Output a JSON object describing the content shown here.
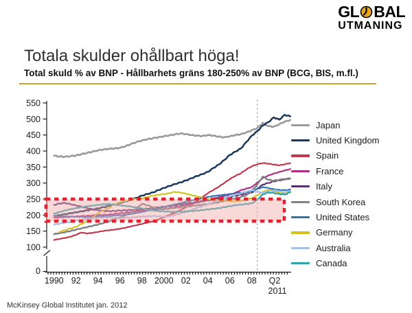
{
  "logo": {
    "part1": "GL",
    "part2": "BAL",
    "line2": "UTMANING",
    "clock_color": "#eaa61f"
  },
  "header": {
    "title": "Totala skulder ohållbart höga!",
    "subtitle": "Total skuld % av BNP - Hållbarhets gräns 180-250% av BNP (BCG, BIS, m.fl.)",
    "rule_color": "#d49e2a"
  },
  "footer": {
    "source": "McKinsey Global Institutet jan. 2012"
  },
  "chart_data": {
    "type": "line",
    "ylabel": "Total skuld % av BNP",
    "x_start": 1990,
    "x_step": 0.5,
    "x_end": 2011.5,
    "ylim": [
      100,
      550
    ],
    "y_axis_break_between": [
      0,
      100
    ],
    "y_ticks": [
      550,
      500,
      450,
      400,
      350,
      300,
      250,
      200,
      150,
      100
    ],
    "y_tick_zero": "0",
    "x_tick_labels": [
      {
        "t": 1990,
        "label": "1990"
      },
      {
        "t": 1992,
        "label": "92"
      },
      {
        "t": 1994,
        "label": "94"
      },
      {
        "t": 1996,
        "label": "96"
      },
      {
        "t": 1998,
        "label": "98"
      },
      {
        "t": 2000,
        "label": "2000"
      },
      {
        "t": 2002,
        "label": "02"
      },
      {
        "t": 2004,
        "label": "04"
      },
      {
        "t": 2006,
        "label": "06"
      },
      {
        "t": 2008,
        "label": "08"
      },
      {
        "t": 2011.25,
        "label": "Q2",
        "sublabel": "2011"
      }
    ],
    "band": {
      "from": 181,
      "to": 250,
      "note": "Hållbarhets gräns 180-250% av BNP",
      "fill": "#f2a9a9",
      "border": "#e32330"
    },
    "event_line_x": 2008.5,
    "legend_position": "right",
    "series": [
      {
        "name": "Japan",
        "color": "#9b9b9b",
        "width": 2.7,
        "values": [
          385,
          383,
          382,
          384,
          386,
          390,
          394,
          398,
          402,
          405,
          407,
          408,
          410,
          415,
          422,
          428,
          433,
          437,
          440,
          443,
          446,
          449,
          452,
          455,
          453,
          450,
          448,
          447,
          450,
          448,
          445,
          443,
          446,
          450,
          453,
          458,
          465,
          472,
          488,
          478,
          476,
          484,
          492,
          497
        ]
      },
      {
        "name": "United Kingdom",
        "color": "#17365d",
        "width": 2.5,
        "values": [
          198,
          200,
          203,
          206,
          209,
          212,
          215,
          218,
          221,
          225,
          229,
          233,
          238,
          243,
          248,
          254,
          261,
          266,
          271,
          278,
          285,
          291,
          297,
          302,
          308,
          315,
          322,
          328,
          335,
          347,
          358,
          372,
          388,
          398,
          408,
          428,
          448,
          462,
          480,
          490,
          505,
          498,
          513,
          508
        ]
      },
      {
        "name": "Spain",
        "color": "#c0394e",
        "width": 2.2,
        "values": [
          122,
          125,
          128,
          132,
          138,
          145,
          142,
          144,
          147,
          150,
          152,
          154,
          157,
          160,
          164,
          168,
          172,
          176,
          180,
          186,
          193,
          200,
          207,
          215,
          224,
          232,
          242,
          255,
          268,
          278,
          288,
          300,
          312,
          322,
          330,
          342,
          352,
          358,
          362,
          360,
          357,
          355,
          358,
          362
        ]
      },
      {
        "name": "France",
        "color": "#b02d82",
        "width": 2.2,
        "values": [
          192,
          193,
          194,
          195,
          196,
          197,
          198,
          199,
          200,
          201,
          202,
          204,
          206,
          208,
          210,
          212,
          214,
          215,
          216,
          218,
          220,
          222,
          225,
          228,
          232,
          236,
          240,
          244,
          248,
          252,
          256,
          260,
          265,
          270,
          278,
          283,
          288,
          302,
          316,
          324,
          330,
          335,
          340,
          344
        ]
      },
      {
        "name": "Italy",
        "color": "#5c2d71",
        "width": 2.2,
        "values": [
          232,
          236,
          238,
          234,
          230,
          226,
          222,
          218,
          215,
          213,
          212,
          213,
          214,
          215,
          216,
          217,
          218,
          220,
          222,
          224,
          226,
          228,
          230,
          233,
          236,
          238,
          240,
          243,
          246,
          248,
          250,
          253,
          256,
          260,
          264,
          266,
          270,
          282,
          295,
          300,
          305,
          308,
          312,
          314
        ]
      },
      {
        "name": "South Korea",
        "color": "#828282",
        "width": 2.5,
        "values": [
          140,
          143,
          146,
          150,
          154,
          158,
          162,
          166,
          170,
          175,
          180,
          186,
          192,
          199,
          207,
          220,
          235,
          230,
          224,
          220,
          218,
          220,
          222,
          224,
          226,
          228,
          230,
          232,
          234,
          237,
          240,
          244,
          248,
          252,
          256,
          262,
          275,
          295,
          320,
          310,
          307,
          310,
          311,
          314
        ]
      },
      {
        "name": "United States",
        "color": "#2e74b5",
        "width": 2.2,
        "values": [
          198,
          197,
          196,
          196,
          195,
          195,
          194,
          195,
          196,
          197,
          198,
          199,
          200,
          202,
          204,
          207,
          210,
          214,
          218,
          222,
          226,
          230,
          234,
          238,
          242,
          246,
          250,
          254,
          257,
          260,
          262,
          264,
          266,
          268,
          270,
          272,
          275,
          282,
          288,
          285,
          281,
          279,
          278,
          280
        ]
      },
      {
        "name": "Germany",
        "color": "#d3c120",
        "width": 2.2,
        "values": [
          null,
          148,
          152,
          158,
          163,
          172,
          180,
          192,
          205,
          215,
          222,
          232,
          240,
          244,
          248,
          250,
          252,
          256,
          260,
          263,
          265,
          268,
          272,
          270,
          266,
          262,
          258,
          254,
          250,
          248,
          246,
          244,
          243,
          242,
          244,
          248,
          252,
          262,
          272,
          278,
          274,
          269,
          267,
          270
        ]
      },
      {
        "name": "Australia",
        "color": "#a7bfe6",
        "width": 2.2,
        "values": [
          170,
          173,
          176,
          179,
          182,
          185,
          188,
          190,
          191,
          192,
          192,
          191,
          190,
          191,
          192,
          194,
          195,
          196,
          197,
          196,
          195,
          197,
          200,
          205,
          210,
          216,
          222,
          228,
          234,
          240,
          246,
          252,
          258,
          263,
          268,
          273,
          278,
          272,
          270,
          274,
          277,
          274,
          272,
          276
        ]
      },
      {
        "name": "Canada",
        "color": "#2aa4a9",
        "width": 2.2,
        "values": [
          205,
          210,
          215,
          219,
          222,
          225,
          228,
          230,
          232,
          234,
          235,
          233,
          231,
          229,
          227,
          224,
          221,
          218,
          215,
          213,
          212,
          211,
          210,
          211,
          212,
          213,
          214,
          216,
          218,
          220,
          222,
          225,
          228,
          231,
          233,
          235,
          237,
          248,
          265,
          271,
          269,
          266,
          264,
          272
        ]
      }
    ]
  }
}
